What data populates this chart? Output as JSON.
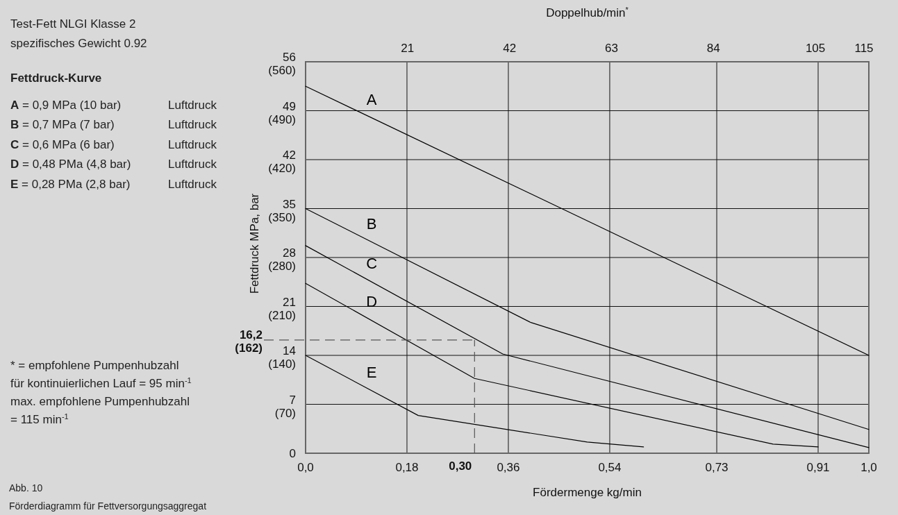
{
  "chart_data": {
    "type": "line",
    "title": "Test-Fett  NLGI Klasse 2",
    "subtitle": "spezifisches Gewicht 0.92",
    "xlabel": "Fördermenge kg/min",
    "y2label": "Fettdruck MPa, bar",
    "x2label": "Doppelhub/min$^{*}$",
    "xlim": [
      0,
      1.0
    ],
    "xticks": [
      {
        "value": 0,
        "label": "0,0"
      },
      {
        "value": 0.18,
        "label": "0,18"
      },
      {
        "value": 0.36,
        "label": "0,36"
      },
      {
        "value": 0.54,
        "label": "0,54"
      },
      {
        "value": 0.73,
        "label": "0,73"
      },
      {
        "value": 0.91,
        "label": "0,91"
      },
      {
        "value": 1.0,
        "label": "1,0"
      }
    ],
    "x2lim": [
      0,
      116
    ],
    "x2ticks": [
      21,
      42,
      63,
      84,
      105,
      115
    ],
    "ylim": [
      0,
      56
    ],
    "yticks": [
      0,
      7,
      14,
      21,
      28,
      35,
      42,
      49,
      56
    ],
    "y2lim": [
      0,
      560
    ],
    "y2ticks": [
      {
        "value": 70,
        "label": "(70)"
      },
      {
        "value": 140,
        "label": "(140)"
      },
      {
        "value": 210,
        "label": "(210)"
      },
      {
        "value": 280,
        "label": "(280)"
      },
      {
        "value": 350,
        "label": "(350)"
      },
      {
        "value": 420,
        "label": "(420)"
      },
      {
        "value": 490,
        "label": "(490)"
      },
      {
        "value": 560,
        "label": "(560)"
      }
    ],
    "grid": true,
    "marker": "none",
    "line_style": "solid",
    "ref_lines": [
      {
        "axis": "y",
        "value": 16.2,
        "label": "16,2\n(162)",
        "line_style": "dashed"
      },
      {
        "axis": "x",
        "value": 0.3,
        "label": "0,30",
        "line_style": "dashed"
      }
    ],
    "series": [
      {
        "name": "A",
        "color": "#000000",
        "x": [
          0,
          1.0
        ],
        "values": [
          52.5,
          14
        ]
      },
      {
        "name": "B",
        "color": "#000000",
        "x": [
          0,
          0.4,
          1.0
        ],
        "values": [
          35,
          18.7,
          3.4
        ]
      },
      {
        "name": "C",
        "color": "#000000",
        "x": [
          0,
          0.35,
          1.0
        ],
        "values": [
          29.7,
          14.2,
          0.8
        ]
      },
      {
        "name": "D",
        "color": "#000000",
        "x": [
          0,
          0.3,
          0.83,
          0.91
        ],
        "values": [
          24.3,
          10.7,
          1.3,
          0.9
        ]
      },
      {
        "name": "E",
        "color": "#000000",
        "x": [
          0,
          0.2,
          0.5,
          0.6
        ],
        "values": [
          14,
          5.4,
          1.6,
          0.9
        ]
      }
    ],
    "annotations": [
      "Fettdruck-Kurve",
      "A = 0,9 MPa (10 bar) Luftdruck",
      "B = 0,7 MPa (7 bar) Luftdruck",
      "C = 0,6 MPa (6 bar) Luftdruck",
      "D = 0,48 PMa (4,8 bar) Luftdruck",
      "E = 0,28 PMa (2,8 bar) Luftdruck",
      "* = empfohlene Pumpenhubzahl",
      "für kontinuierlichen Lauf = 95 min$^{-1}$",
      "max. empfohlene Pumpenhubzahl",
      "= 115 min$^{-1}$",
      "Abb. 10",
      "Förderdiagramm für Fettversorgungsaggregat"
    ]
  }
}
